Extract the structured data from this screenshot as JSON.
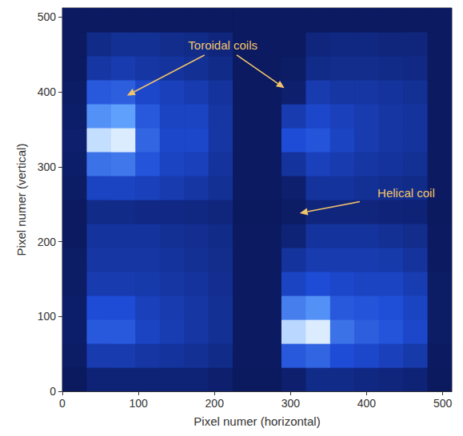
{
  "chart_data": {
    "type": "heatmap",
    "xlabel": "Pixel numer (horizontal)",
    "ylabel": "Pixel numer (vertical)",
    "xlim": [
      0,
      512
    ],
    "ylim": [
      0,
      512
    ],
    "xticks": [
      0,
      100,
      200,
      300,
      400,
      500
    ],
    "yticks": [
      0,
      100,
      200,
      300,
      400,
      500
    ],
    "grid": false,
    "x_edges": [
      0,
      32,
      64,
      96,
      128,
      160,
      192,
      224,
      256,
      288,
      320,
      352,
      384,
      416,
      448,
      480,
      512
    ],
    "y_edges": [
      0,
      32,
      64,
      96,
      128,
      160,
      192,
      224,
      256,
      288,
      320,
      352,
      384,
      416,
      448,
      480,
      512
    ],
    "clim": [
      0,
      1
    ],
    "cells": [
      [
        0.04,
        0.1,
        0.1,
        0.1,
        0.1,
        0.1,
        0.08,
        0.04,
        0.04,
        0.08,
        0.15,
        0.15,
        0.13,
        0.12,
        0.1,
        0.04
      ],
      [
        0.06,
        0.25,
        0.25,
        0.22,
        0.2,
        0.18,
        0.15,
        0.05,
        0.05,
        0.4,
        0.45,
        0.35,
        0.32,
        0.28,
        0.24,
        0.05
      ],
      [
        0.07,
        0.4,
        0.4,
        0.3,
        0.26,
        0.22,
        0.18,
        0.05,
        0.05,
        0.88,
        0.95,
        0.5,
        0.42,
        0.38,
        0.32,
        0.06
      ],
      [
        0.07,
        0.35,
        0.35,
        0.28,
        0.25,
        0.22,
        0.18,
        0.05,
        0.05,
        0.55,
        0.62,
        0.4,
        0.38,
        0.36,
        0.3,
        0.06
      ],
      [
        0.06,
        0.25,
        0.25,
        0.24,
        0.22,
        0.2,
        0.17,
        0.05,
        0.05,
        0.3,
        0.35,
        0.32,
        0.3,
        0.3,
        0.26,
        0.06
      ],
      [
        0.06,
        0.22,
        0.22,
        0.22,
        0.2,
        0.18,
        0.16,
        0.05,
        0.05,
        0.2,
        0.25,
        0.25,
        0.25,
        0.24,
        0.2,
        0.05
      ],
      [
        0.05,
        0.2,
        0.2,
        0.2,
        0.18,
        0.17,
        0.15,
        0.05,
        0.05,
        0.1,
        0.2,
        0.2,
        0.2,
        0.18,
        0.16,
        0.05
      ],
      [
        0.05,
        0.15,
        0.15,
        0.14,
        0.14,
        0.13,
        0.12,
        0.04,
        0.04,
        0.06,
        0.12,
        0.12,
        0.12,
        0.11,
        0.1,
        0.04
      ],
      [
        0.06,
        0.3,
        0.3,
        0.28,
        0.25,
        0.22,
        0.18,
        0.05,
        0.05,
        0.08,
        0.2,
        0.2,
        0.18,
        0.16,
        0.15,
        0.05
      ],
      [
        0.07,
        0.5,
        0.52,
        0.38,
        0.3,
        0.28,
        0.2,
        0.05,
        0.05,
        0.2,
        0.28,
        0.25,
        0.22,
        0.2,
        0.18,
        0.05
      ],
      [
        0.08,
        0.9,
        0.95,
        0.45,
        0.32,
        0.32,
        0.22,
        0.05,
        0.05,
        0.35,
        0.38,
        0.3,
        0.25,
        0.22,
        0.2,
        0.05
      ],
      [
        0.07,
        0.62,
        0.68,
        0.4,
        0.3,
        0.3,
        0.22,
        0.05,
        0.05,
        0.25,
        0.32,
        0.28,
        0.25,
        0.22,
        0.2,
        0.05
      ],
      [
        0.06,
        0.4,
        0.42,
        0.32,
        0.28,
        0.25,
        0.2,
        0.05,
        0.05,
        0.08,
        0.25,
        0.22,
        0.22,
        0.2,
        0.18,
        0.05
      ],
      [
        0.05,
        0.22,
        0.25,
        0.22,
        0.2,
        0.18,
        0.15,
        0.05,
        0.05,
        0.06,
        0.15,
        0.16,
        0.16,
        0.15,
        0.14,
        0.05
      ],
      [
        0.05,
        0.15,
        0.18,
        0.18,
        0.16,
        0.15,
        0.12,
        0.05,
        0.05,
        0.05,
        0.12,
        0.13,
        0.13,
        0.12,
        0.12,
        0.05
      ],
      [
        0.05,
        0.05,
        0.05,
        0.05,
        0.05,
        0.05,
        0.05,
        0.05,
        0.05,
        0.05,
        0.05,
        0.05,
        0.05,
        0.05,
        0.05,
        0.05
      ]
    ],
    "annotations": [
      {
        "text": "Toroidal coils",
        "xytext": [
          211,
          462
        ],
        "xy": [
          [
            85,
            395
          ],
          [
            292,
            405
          ]
        ]
      },
      {
        "text": "Helical coil",
        "xytext": [
          452,
          265
        ],
        "xy": [
          [
            312,
            238
          ]
        ]
      }
    ]
  }
}
